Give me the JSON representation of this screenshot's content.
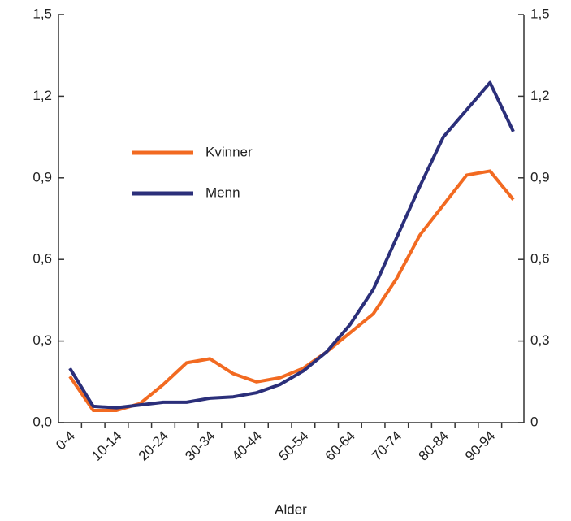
{
  "chart_data": {
    "type": "line",
    "x_label": "Alder",
    "categories": [
      "0-4",
      null,
      "10-14",
      null,
      "20-24",
      null,
      "30-34",
      null,
      "40-44",
      null,
      "50-54",
      null,
      "60-64",
      null,
      "70-74",
      null,
      "80-84",
      null,
      "90-94",
      null
    ],
    "series": [
      {
        "name": "Kvinner",
        "color": "#f26a21",
        "values": [
          0.17,
          0.045,
          0.045,
          0.07,
          0.14,
          0.22,
          0.235,
          0.18,
          0.15,
          0.165,
          0.2,
          0.26,
          0.33,
          0.4,
          0.53,
          0.69,
          0.8,
          0.91,
          0.925,
          0.82
        ]
      },
      {
        "name": "Menn",
        "color": "#2b2f7a",
        "values": [
          0.2,
          0.06,
          0.055,
          0.065,
          0.075,
          0.075,
          0.09,
          0.095,
          0.11,
          0.14,
          0.19,
          0.26,
          0.36,
          0.49,
          0.68,
          0.87,
          1.05,
          1.15,
          1.25,
          1.07
        ]
      }
    ],
    "ylim": [
      0,
      1.5
    ],
    "yticks": [
      {
        "value": 0,
        "label": "0,0"
      },
      {
        "value": 0.3,
        "label": "0,3"
      },
      {
        "value": 0.6,
        "label": "0,6"
      },
      {
        "value": 0.9,
        "label": "0,9"
      },
      {
        "value": 1.2,
        "label": "1,2"
      },
      {
        "value": 1.5,
        "label": "1,5"
      }
    ],
    "y2lim": [
      0,
      1.5
    ],
    "y2ticks": [
      {
        "value": 0,
        "label": "0"
      },
      {
        "value": 0.3,
        "label": "0,3"
      },
      {
        "value": 0.6,
        "label": "0,6"
      },
      {
        "value": 0.9,
        "label": "0,9"
      },
      {
        "value": 1.2,
        "label": "1,2"
      },
      {
        "value": 1.5,
        "label": "1,5"
      }
    ],
    "legend": "upper left"
  }
}
